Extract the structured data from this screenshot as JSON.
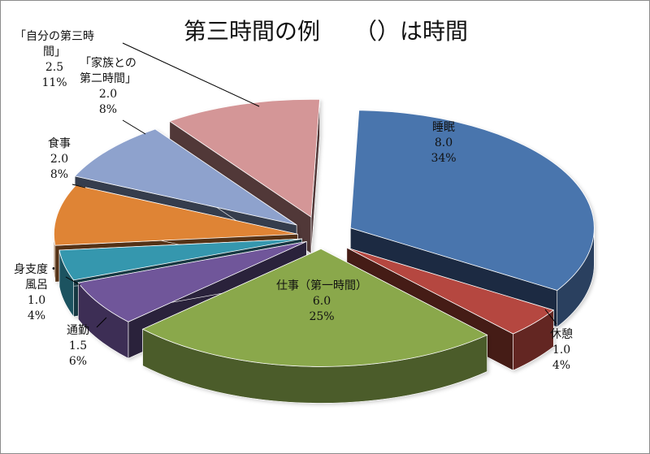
{
  "chart_data": {
    "type": "pie",
    "title": "第三時間の例　　（）は時間",
    "slices": [
      {
        "name": "睡眠",
        "value": 8.0,
        "value_label": "8.0",
        "percent": "34%",
        "color": "#4a74ad"
      },
      {
        "name": "休憩",
        "value": 1.0,
        "value_label": "1.0",
        "percent": "4%",
        "color": "#b5473f"
      },
      {
        "name": "仕事（第一時間）",
        "value": 6.0,
        "value_label": "6.0",
        "percent": "25%",
        "color": "#8aa84b"
      },
      {
        "name": "通勤",
        "value": 1.5,
        "value_label": "1.5",
        "percent": "6%",
        "color": "#6f569a"
      },
      {
        "name": "身支度・風呂",
        "value": 1.0,
        "value_label": "1.0",
        "percent": "4%",
        "color": "#3597ae"
      },
      {
        "name": "食事",
        "value": 2.0,
        "value_label": "2.0",
        "percent": "8%",
        "color": "#df8436"
      },
      {
        "name": "「家族との第二時間」",
        "value": 2.0,
        "value_label": "2.0",
        "percent": "8%",
        "color": "#8ea2cd"
      },
      {
        "name": "「自分の第三時間」",
        "value": 2.5,
        "value_label": "2.5",
        "percent": "11%",
        "color": "#d49697"
      }
    ]
  }
}
